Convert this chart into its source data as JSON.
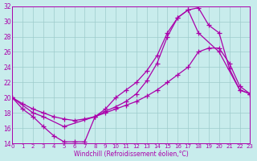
{
  "xlabel": "Windchill (Refroidissement éolien,°C)",
  "xlim": [
    0,
    23
  ],
  "ylim": [
    14,
    32
  ],
  "yticks": [
    14,
    16,
    18,
    20,
    22,
    24,
    26,
    28,
    30,
    32
  ],
  "xticks": [
    0,
    1,
    2,
    3,
    4,
    5,
    6,
    7,
    8,
    9,
    10,
    11,
    12,
    13,
    14,
    15,
    16,
    17,
    18,
    19,
    20,
    21,
    22,
    23
  ],
  "bg_color": "#c8ecec",
  "line_color": "#aa00aa",
  "grid_color": "#9dcccc",
  "line1_x": [
    0,
    1,
    2,
    3,
    4,
    5,
    6,
    7,
    8,
    9,
    10,
    11,
    12,
    13,
    14,
    15,
    16,
    17,
    18,
    19,
    20,
    21,
    22,
    23
  ],
  "line1_y": [
    20.0,
    18.5,
    17.5,
    16.2,
    15.0,
    14.2,
    14.2,
    14.2,
    17.5,
    18.2,
    18.8,
    19.5,
    20.5,
    22.2,
    24.5,
    28.0,
    30.5,
    31.5,
    31.8,
    29.5,
    28.5,
    23.8,
    21.0,
    20.5
  ],
  "line2_x": [
    0,
    1,
    2,
    3,
    4,
    5,
    6,
    7,
    8,
    9,
    10,
    11,
    12,
    13,
    14,
    15,
    16,
    17,
    18,
    19,
    20,
    21,
    22,
    23
  ],
  "line2_y": [
    20.0,
    19.2,
    18.5,
    18.0,
    17.5,
    17.2,
    17.0,
    17.2,
    17.5,
    18.0,
    18.5,
    19.0,
    19.5,
    20.2,
    21.0,
    22.0,
    23.0,
    24.0,
    26.0,
    26.5,
    26.5,
    24.5,
    21.5,
    20.5
  ],
  "line3_x": [
    0,
    2,
    3,
    5,
    8,
    9,
    10,
    11,
    12,
    13,
    14,
    15,
    16,
    17,
    18,
    20,
    22,
    23
  ],
  "line3_y": [
    20.0,
    18.0,
    17.5,
    16.2,
    17.5,
    18.5,
    20.0,
    21.0,
    22.0,
    23.5,
    25.5,
    28.5,
    30.5,
    31.5,
    28.5,
    26.0,
    21.0,
    20.5
  ]
}
